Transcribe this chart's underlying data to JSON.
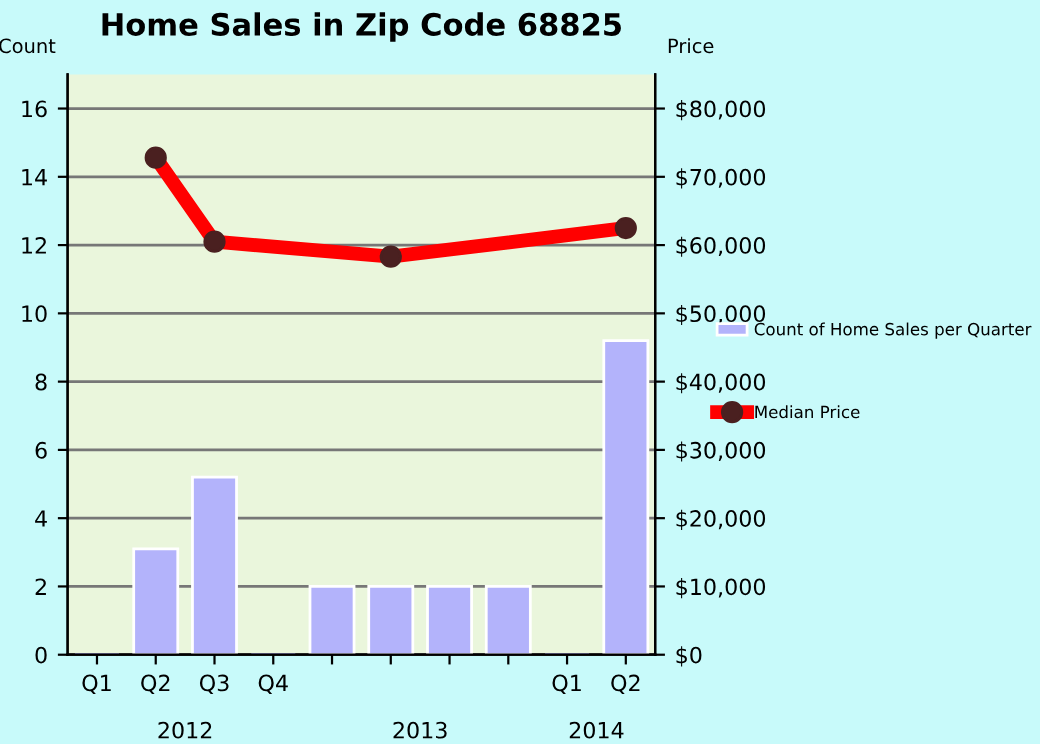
{
  "chart_data": {
    "type": "bar",
    "title": "Home Sales in Zip Code 68825",
    "ylabel": "Count",
    "y2label": "Price",
    "categories": [
      "Q1",
      "Q2",
      "Q3",
      "Q4",
      null,
      null,
      null,
      null,
      "Q1",
      "Q2"
    ],
    "annotations": [
      "2012",
      "2013",
      "2014"
    ],
    "series": [
      {
        "name": "Count of Home Sales per Quarter",
        "color": "#b3b3fb",
        "values": [
          0,
          3.1,
          5.2,
          0,
          2,
          2,
          2,
          2,
          0,
          9.2
        ]
      },
      {
        "name": "Median Price",
        "type": "line",
        "axis": "y2",
        "color": "#ff0000",
        "values": [
          null,
          72800,
          60500,
          null,
          null,
          58300,
          null,
          null,
          null,
          62500
        ]
      }
    ],
    "ylim": [
      0,
      17
    ],
    "yticks": [
      0,
      2,
      4,
      6,
      8,
      10,
      12,
      14,
      16
    ],
    "y2lim": [
      0,
      85000
    ],
    "y2ticks": [
      {
        "value": 0,
        "label": "$0"
      },
      {
        "value": 10000,
        "label": "$10,000"
      },
      {
        "value": 20000,
        "label": "$20,000"
      },
      {
        "value": 30000,
        "label": "$30,000"
      },
      {
        "value": 40000,
        "label": "$40,000"
      },
      {
        "value": 50000,
        "label": "$50,000"
      },
      {
        "value": 60000,
        "label": "$60,000"
      },
      {
        "value": 70000,
        "label": "$70,000"
      },
      {
        "value": 80000,
        "label": "$80,000"
      }
    ],
    "grid": "y",
    "legend": "right",
    "marker": "circle",
    "line_style": "solid"
  }
}
